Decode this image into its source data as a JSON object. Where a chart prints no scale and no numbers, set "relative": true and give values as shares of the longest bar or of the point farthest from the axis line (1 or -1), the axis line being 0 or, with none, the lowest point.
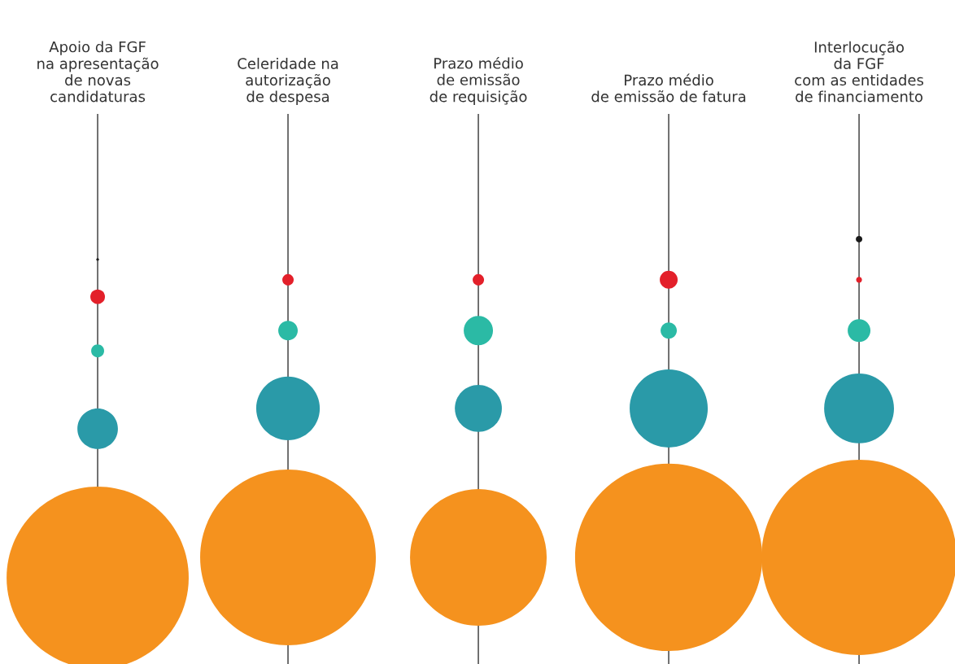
{
  "chart_data": {
    "type": "bubble",
    "relative": true,
    "grid": "x",
    "tick_labels": "x",
    "marker": "circle",
    "categories": [
      "Apoio da FGF\nna apresentação\nde novas\ncandidaturas",
      "Celeridade na\nautorização\nde despesa",
      "Prazo médio\nde emissão\nde requisição",
      "Prazo médio\nde emissão de fatura",
      "Interlocução\nda FGF\ncom as entidades\nde financiamento"
    ],
    "series": [
      {
        "color": "#1a1a1a",
        "values": [
          0.94,
          null,
          null,
          null,
          1
        ],
        "sizes": [
          0.0002,
          null,
          null,
          null,
          0.0011
        ]
      },
      {
        "color": "#e3202a",
        "values": [
          0.83,
          0.88,
          0.88,
          0.88,
          0.88
        ],
        "sizes": [
          0.0056,
          0.0034,
          0.0034,
          0.0084,
          0.0009
        ]
      },
      {
        "color": "#2bbaa5",
        "values": [
          0.67,
          0.73,
          0.73,
          0.73,
          0.73
        ],
        "sizes": [
          0.0044,
          0.01,
          0.0225,
          0.0069,
          0.0136
        ]
      },
      {
        "color": "#2a9aa8",
        "values": [
          0.44,
          0.5,
          0.5,
          0.5,
          0.5
        ],
        "sizes": [
          0.043,
          0.106,
          0.058,
          0.16,
          0.128
        ]
      },
      {
        "color": "#f5921e",
        "values": [
          0,
          0.06,
          0.06,
          0.06,
          0.06
        ],
        "sizes": [
          0.87,
          0.81,
          0.49,
          0.92,
          1
        ]
      }
    ]
  }
}
